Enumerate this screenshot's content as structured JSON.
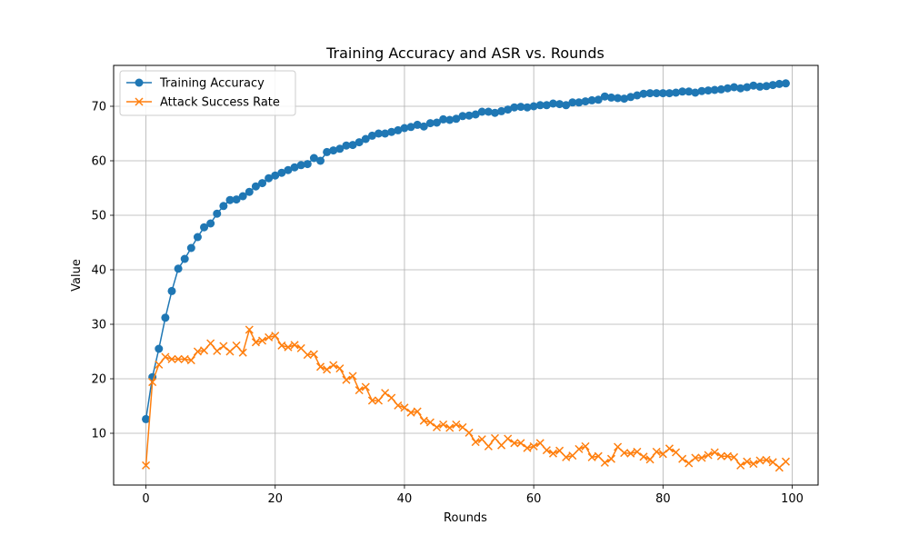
{
  "chart_data": {
    "type": "line",
    "title": "Training Accuracy and ASR vs. Rounds",
    "xlabel": "Rounds",
    "ylabel": "Value",
    "xlim": [
      -5,
      104
    ],
    "ylim": [
      0.5,
      77.5
    ],
    "xticks": [
      0,
      20,
      40,
      60,
      80,
      100
    ],
    "yticks": [
      10,
      20,
      30,
      40,
      50,
      60,
      70
    ],
    "grid": true,
    "legend": "upper-left",
    "x": [
      0,
      1,
      2,
      3,
      4,
      5,
      6,
      7,
      8,
      9,
      10,
      11,
      12,
      13,
      14,
      15,
      16,
      17,
      18,
      19,
      20,
      21,
      22,
      23,
      24,
      25,
      26,
      27,
      28,
      29,
      30,
      31,
      32,
      33,
      34,
      35,
      36,
      37,
      38,
      39,
      40,
      41,
      42,
      43,
      44,
      45,
      46,
      47,
      48,
      49,
      50,
      51,
      52,
      53,
      54,
      55,
      56,
      57,
      58,
      59,
      60,
      61,
      62,
      63,
      64,
      65,
      66,
      67,
      68,
      69,
      70,
      71,
      72,
      73,
      74,
      75,
      76,
      77,
      78,
      79,
      80,
      81,
      82,
      83,
      84,
      85,
      86,
      87,
      88,
      89,
      90,
      91,
      92,
      93,
      94,
      95,
      96,
      97,
      98,
      99
    ],
    "series": [
      {
        "name": "Training Accuracy",
        "color": "#1f77b4",
        "marker": "circle",
        "values": [
          12.6,
          20.3,
          25.5,
          31.2,
          36.1,
          40.2,
          42.0,
          44.0,
          46.0,
          47.8,
          48.5,
          50.3,
          51.7,
          52.8,
          52.9,
          53.5,
          54.3,
          55.3,
          55.9,
          56.8,
          57.3,
          57.8,
          58.3,
          58.8,
          59.2,
          59.4,
          60.5,
          60.0,
          61.6,
          61.9,
          62.2,
          62.8,
          62.9,
          63.4,
          64.0,
          64.6,
          65.0,
          65.0,
          65.3,
          65.6,
          66.0,
          66.2,
          66.6,
          66.3,
          66.9,
          67.0,
          67.6,
          67.5,
          67.7,
          68.2,
          68.3,
          68.5,
          69.0,
          69.0,
          68.8,
          69.1,
          69.4,
          69.8,
          69.9,
          69.8,
          70.0,
          70.2,
          70.2,
          70.5,
          70.4,
          70.2,
          70.7,
          70.7,
          70.9,
          71.1,
          71.2,
          71.8,
          71.6,
          71.5,
          71.4,
          71.7,
          72.0,
          72.3,
          72.4,
          72.4,
          72.4,
          72.4,
          72.5,
          72.7,
          72.7,
          72.5,
          72.8,
          72.9,
          73.0,
          73.1,
          73.3,
          73.5,
          73.3,
          73.5,
          73.8,
          73.6,
          73.7,
          73.9,
          74.1,
          74.2
        ]
      },
      {
        "name": "Attack Success Rate",
        "color": "#ff7f0e",
        "marker": "x",
        "values": [
          4.1,
          19.4,
          22.6,
          24.0,
          23.6,
          23.6,
          23.6,
          23.4,
          25.0,
          25.2,
          26.5,
          25.1,
          26.0,
          25.0,
          26.1,
          24.8,
          29.0,
          26.7,
          27.0,
          27.6,
          27.9,
          26.1,
          25.8,
          26.2,
          25.6,
          24.4,
          24.5,
          22.2,
          21.7,
          22.5,
          21.9,
          19.8,
          20.5,
          17.9,
          18.5,
          16.0,
          16.0,
          17.4,
          16.5,
          15.1,
          14.7,
          13.8,
          14.0,
          12.3,
          12.0,
          11.1,
          11.6,
          11.0,
          11.6,
          11.1,
          10.1,
          8.4,
          8.9,
          7.6,
          9.1,
          7.8,
          9.0,
          8.2,
          8.2,
          7.3,
          7.6,
          8.2,
          6.9,
          6.3,
          6.8,
          5.6,
          5.9,
          7.1,
          7.6,
          5.6,
          5.8,
          4.6,
          5.3,
          7.5,
          6.4,
          6.3,
          6.6,
          5.7,
          5.2,
          6.6,
          6.2,
          7.2,
          6.5,
          5.3,
          4.5,
          5.5,
          5.5,
          6.0,
          6.5,
          5.8,
          5.8,
          5.6,
          4.1,
          4.8,
          4.4,
          5.0,
          5.1,
          4.7,
          3.7,
          4.8
        ]
      }
    ]
  }
}
